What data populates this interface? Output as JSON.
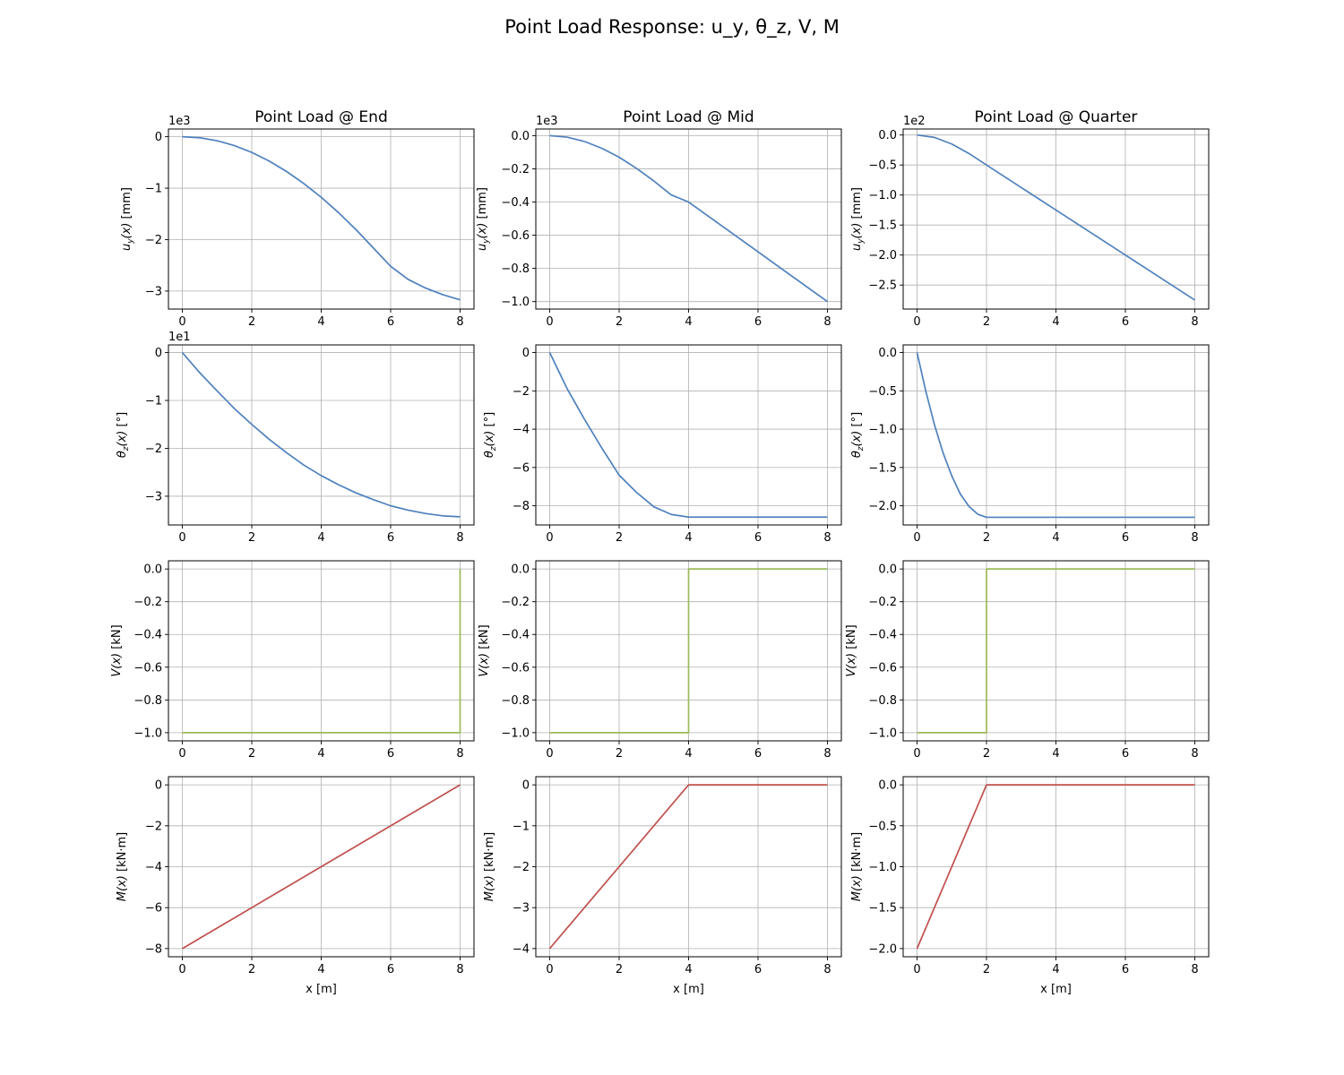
{
  "figure": {
    "suptitle": "Point Load Response: u_y, θ_z, V, M",
    "colors": {
      "deflection": "#4f81bd",
      "rotation": "#4f81bd",
      "shear": "#9bbb59",
      "moment": "#c0504d",
      "grid": "#b0b0b0"
    }
  },
  "chart_data": [
    {
      "type": "line",
      "title": "Point Load @ End",
      "ylabel": "u_y(x) [mm]",
      "xlabel": "",
      "offset_text": "1e3",
      "xlim": [
        -0.4,
        8.4
      ],
      "ylim": [
        -3.35,
        0.15
      ],
      "xticks": [
        0,
        2,
        4,
        6,
        8
      ],
      "yticks": [
        -3,
        -2,
        -1,
        0
      ],
      "ytick_labels": [
        "−3",
        "−2",
        "−1",
        "0"
      ],
      "grid": true,
      "series": [
        {
          "name": "",
          "values_x": [
            0,
            0.5,
            1,
            1.5,
            2,
            2.5,
            3,
            3.5,
            4,
            4.5,
            5,
            5.5,
            6,
            6.5,
            7,
            7.5,
            8
          ],
          "values_y": [
            0,
            -0.0195,
            -0.0775,
            -0.173,
            -0.305,
            -0.472,
            -0.675,
            -0.911,
            -1.178,
            -1.477,
            -1.805,
            -2.162,
            -2.52,
            -2.772,
            -2.94,
            -3.07,
            -3.17
          ]
        }
      ]
    },
    {
      "type": "line",
      "title": "Point Load @ Mid",
      "ylabel": "u_y(x) [mm]",
      "xlabel": "",
      "offset_text": "1e3",
      "xlim": [
        -0.4,
        8.4
      ],
      "ylim": [
        -1.045,
        0.04
      ],
      "xticks": [
        0,
        2,
        4,
        6,
        8
      ],
      "yticks": [
        -1.0,
        -0.8,
        -0.6,
        -0.4,
        -0.2,
        0.0
      ],
      "ytick_labels": [
        "−1.0",
        "−0.8",
        "−0.6",
        "−0.4",
        "−0.2",
        "0.0"
      ],
      "grid": true,
      "series": [
        {
          "name": "",
          "values_x": [
            0,
            0.5,
            1,
            1.5,
            2,
            2.5,
            3,
            3.5,
            4,
            5,
            6,
            7,
            8
          ],
          "values_y": [
            0,
            -0.009,
            -0.035,
            -0.076,
            -0.13,
            -0.197,
            -0.273,
            -0.357,
            -0.4,
            -0.55,
            -0.7,
            -0.85,
            -1.0
          ]
        }
      ]
    },
    {
      "type": "line",
      "title": "Point Load @ Quarter",
      "ylabel": "u_y(x) [mm]",
      "xlabel": "",
      "offset_text": "1e2",
      "xlim": [
        -0.4,
        8.4
      ],
      "ylim": [
        -2.9,
        0.1
      ],
      "xticks": [
        0,
        2,
        4,
        6,
        8
      ],
      "yticks": [
        -2.5,
        -2.0,
        -1.5,
        -1.0,
        -0.5,
        0.0
      ],
      "ytick_labels": [
        "−2.5",
        "−2.0",
        "−1.5",
        "−1.0",
        "−0.5",
        "0.0"
      ],
      "grid": true,
      "series": [
        {
          "name": "",
          "values_x": [
            0,
            0.5,
            1,
            1.5,
            2,
            3,
            4,
            5,
            6,
            7,
            8
          ],
          "values_y": [
            0,
            -0.04,
            -0.15,
            -0.31,
            -0.5,
            -0.875,
            -1.25,
            -1.625,
            -2.0,
            -2.375,
            -2.75
          ]
        }
      ]
    },
    {
      "type": "line",
      "title": "",
      "ylabel": "θ_z(x) [°]",
      "xlabel": "",
      "offset_text": "1e1",
      "xlim": [
        -0.4,
        8.4
      ],
      "ylim": [
        -3.6,
        0.16
      ],
      "xticks": [
        0,
        2,
        4,
        6,
        8
      ],
      "yticks": [
        -3,
        -2,
        -1,
        0
      ],
      "ytick_labels": [
        "−3",
        "−2",
        "−1",
        "0"
      ],
      "grid": true,
      "series": [
        {
          "name": "",
          "values_x": [
            0,
            0.5,
            1,
            1.5,
            2,
            2.5,
            3,
            3.5,
            4,
            4.5,
            5,
            5.5,
            6,
            6.5,
            7,
            7.5,
            8
          ],
          "values_y": [
            0,
            -0.42,
            -0.8,
            -1.17,
            -1.5,
            -1.81,
            -2.09,
            -2.35,
            -2.57,
            -2.76,
            -2.93,
            -3.07,
            -3.2,
            -3.29,
            -3.36,
            -3.41,
            -3.43
          ]
        }
      ]
    },
    {
      "type": "line",
      "title": "",
      "ylabel": "θ_z(x) [°]",
      "xlabel": "",
      "offset_text": "",
      "xlim": [
        -0.4,
        8.4
      ],
      "ylim": [
        -9.0,
        0.4
      ],
      "xticks": [
        0,
        2,
        4,
        6,
        8
      ],
      "yticks": [
        -8,
        -6,
        -4,
        -2,
        0
      ],
      "ytick_labels": [
        "−8",
        "−6",
        "−4",
        "−2",
        "0"
      ],
      "grid": true,
      "series": [
        {
          "name": "",
          "values_x": [
            0,
            0.5,
            1,
            1.5,
            2,
            2.5,
            3,
            3.5,
            4,
            5,
            6,
            7,
            8
          ],
          "values_y": [
            0,
            -1.88,
            -3.48,
            -4.98,
            -6.4,
            -7.3,
            -8.05,
            -8.45,
            -8.59,
            -8.59,
            -8.59,
            -8.59,
            -8.59
          ]
        }
      ]
    },
    {
      "type": "line",
      "title": "",
      "ylabel": "θ_z(x) [°]",
      "xlabel": "",
      "offset_text": "",
      "xlim": [
        -0.4,
        8.4
      ],
      "ylim": [
        -2.25,
        0.1
      ],
      "xticks": [
        0,
        2,
        4,
        6,
        8
      ],
      "yticks": [
        -2.0,
        -1.5,
        -1.0,
        -0.5,
        0.0
      ],
      "ytick_labels": [
        "−2.0",
        "−1.5",
        "−1.0",
        "−0.5",
        "0.0"
      ],
      "grid": true,
      "series": [
        {
          "name": "",
          "values_x": [
            0,
            0.25,
            0.5,
            0.75,
            1,
            1.25,
            1.5,
            1.75,
            2,
            3,
            4,
            5,
            6,
            7,
            8
          ],
          "values_y": [
            0,
            -0.5,
            -0.94,
            -1.31,
            -1.61,
            -1.85,
            -2.01,
            -2.11,
            -2.15,
            -2.15,
            -2.15,
            -2.15,
            -2.15,
            -2.15,
            -2.15
          ]
        }
      ]
    },
    {
      "type": "line",
      "title": "",
      "ylabel": "V(x) [kN]",
      "xlabel": "",
      "offset_text": "",
      "xlim": [
        -0.4,
        8.4
      ],
      "ylim": [
        -1.05,
        0.05
      ],
      "xticks": [
        0,
        2,
        4,
        6,
        8
      ],
      "yticks": [
        -1.0,
        -0.8,
        -0.6,
        -0.4,
        -0.2,
        0.0
      ],
      "ytick_labels": [
        "−1.0",
        "−0.8",
        "−0.6",
        "−0.4",
        "−0.2",
        "0.0"
      ],
      "grid": true,
      "series": [
        {
          "name": "",
          "values_x": [
            0,
            8,
            8
          ],
          "values_y": [
            -1.0,
            -1.0,
            0.0
          ]
        }
      ]
    },
    {
      "type": "line",
      "title": "",
      "ylabel": "V(x) [kN]",
      "xlabel": "",
      "offset_text": "",
      "xlim": [
        -0.4,
        8.4
      ],
      "ylim": [
        -1.05,
        0.05
      ],
      "xticks": [
        0,
        2,
        4,
        6,
        8
      ],
      "yticks": [
        -1.0,
        -0.8,
        -0.6,
        -0.4,
        -0.2,
        0.0
      ],
      "ytick_labels": [
        "−1.0",
        "−0.8",
        "−0.6",
        "−0.4",
        "−0.2",
        "0.0"
      ],
      "grid": true,
      "series": [
        {
          "name": "",
          "values_x": [
            0,
            4,
            4,
            8
          ],
          "values_y": [
            -1.0,
            -1.0,
            0.0,
            0.0
          ]
        }
      ]
    },
    {
      "type": "line",
      "title": "",
      "ylabel": "V(x) [kN]",
      "xlabel": "",
      "offset_text": "",
      "xlim": [
        -0.4,
        8.4
      ],
      "ylim": [
        -1.05,
        0.05
      ],
      "xticks": [
        0,
        2,
        4,
        6,
        8
      ],
      "yticks": [
        -1.0,
        -0.8,
        -0.6,
        -0.4,
        -0.2,
        0.0
      ],
      "ytick_labels": [
        "−1.0",
        "−0.8",
        "−0.6",
        "−0.4",
        "−0.2",
        "0.0"
      ],
      "grid": true,
      "series": [
        {
          "name": "",
          "values_x": [
            0,
            2,
            2,
            8
          ],
          "values_y": [
            -1.0,
            -1.0,
            0.0,
            0.0
          ]
        }
      ]
    },
    {
      "type": "line",
      "title": "",
      "ylabel": "M(x) [kN·m]",
      "xlabel": "x [m]",
      "offset_text": "",
      "xlim": [
        -0.4,
        8.4
      ],
      "ylim": [
        -8.4,
        0.4
      ],
      "xticks": [
        0,
        2,
        4,
        6,
        8
      ],
      "yticks": [
        -8,
        -6,
        -4,
        -2,
        0
      ],
      "ytick_labels": [
        "−8",
        "−6",
        "−4",
        "−2",
        "0"
      ],
      "grid": true,
      "series": [
        {
          "name": "",
          "values_x": [
            0,
            8
          ],
          "values_y": [
            -8,
            0
          ]
        }
      ]
    },
    {
      "type": "line",
      "title": "",
      "ylabel": "M(x) [kN·m]",
      "xlabel": "x [m]",
      "offset_text": "",
      "xlim": [
        -0.4,
        8.4
      ],
      "ylim": [
        -4.2,
        0.2
      ],
      "xticks": [
        0,
        2,
        4,
        6,
        8
      ],
      "yticks": [
        -4,
        -3,
        -2,
        -1,
        0
      ],
      "ytick_labels": [
        "−4",
        "−3",
        "−2",
        "−1",
        "0"
      ],
      "grid": true,
      "series": [
        {
          "name": "",
          "values_x": [
            0,
            4,
            8
          ],
          "values_y": [
            -4,
            0,
            0
          ]
        }
      ]
    },
    {
      "type": "line",
      "title": "",
      "ylabel": "M(x) [kN·m]",
      "xlabel": "x [m]",
      "offset_text": "",
      "xlim": [
        -0.4,
        8.4
      ],
      "ylim": [
        -2.1,
        0.1
      ],
      "xticks": [
        0,
        2,
        4,
        6,
        8
      ],
      "yticks": [
        -2.0,
        -1.5,
        -1.0,
        -0.5,
        0.0
      ],
      "ytick_labels": [
        "−2.0",
        "−1.5",
        "−1.0",
        "−0.5",
        "0.0"
      ],
      "grid": true,
      "series": [
        {
          "name": "",
          "values_x": [
            0,
            2,
            8
          ],
          "values_y": [
            -2,
            0,
            0
          ]
        }
      ]
    }
  ]
}
